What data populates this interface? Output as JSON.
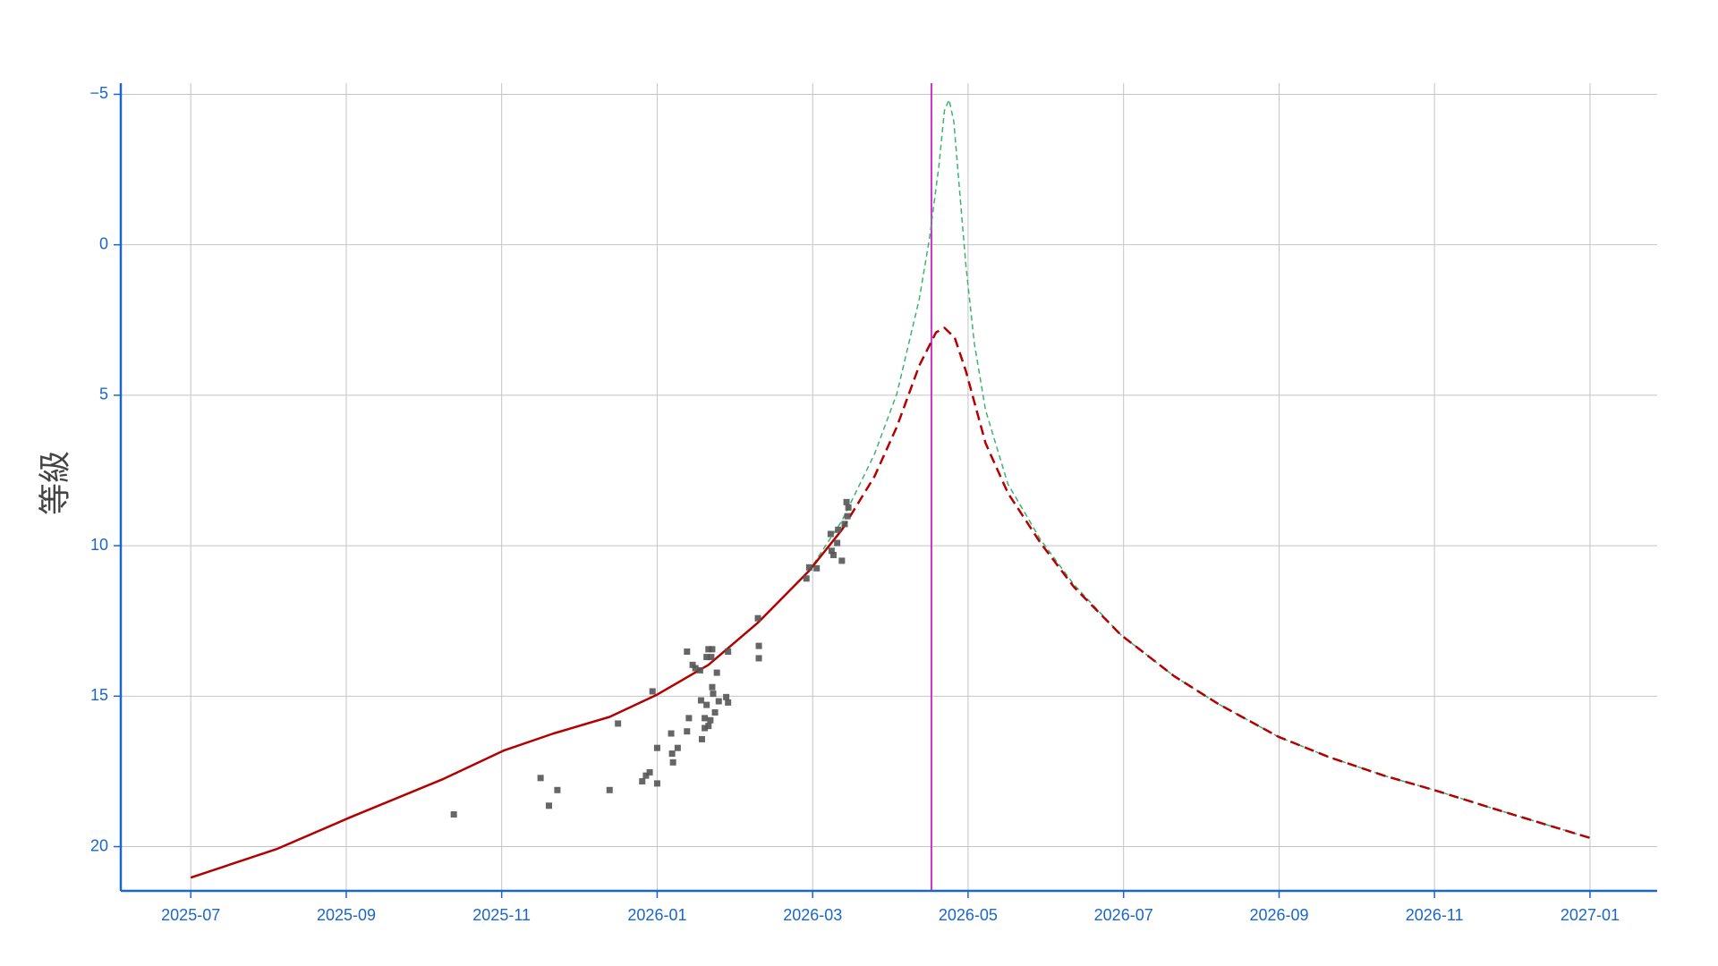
{
  "chart_data": {
    "type": "line",
    "y_label": "等級",
    "xlim": [
      2025.425,
      2027.072
    ],
    "ylim": [
      21.47,
      -5.37
    ],
    "xticks": [
      {
        "value": 2025.5,
        "label": "2025-07"
      },
      {
        "value": 2025.6667,
        "label": "2025-09"
      },
      {
        "value": 2025.8333,
        "label": "2025-11"
      },
      {
        "value": 2026.0,
        "label": "2026-01"
      },
      {
        "value": 2026.1667,
        "label": "2026-03"
      },
      {
        "value": 2026.3333,
        "label": "2026-05"
      },
      {
        "value": 2026.5,
        "label": "2026-07"
      },
      {
        "value": 2026.6667,
        "label": "2026-09"
      },
      {
        "value": 2026.8333,
        "label": "2026-11"
      },
      {
        "value": 2027.0,
        "label": "2027-01"
      }
    ],
    "yticks": [
      {
        "value": -5,
        "label": "−5"
      },
      0,
      5,
      10,
      15,
      20
    ],
    "grid": true,
    "axis_color": "#1a66cc",
    "vlines": [
      {
        "x": 2026.294,
        "color": "#cc33cc"
      }
    ],
    "series": [
      {
        "type": "line",
        "color": "#3cb371",
        "dashed": true,
        "width": 1.5,
        "x": [
          2025.5,
          2025.593,
          2025.67,
          2025.771,
          2025.836,
          2025.889,
          2025.949,
          2026.0,
          2026.055,
          2026.108,
          2026.163,
          2026.198,
          2026.233,
          2026.257,
          2026.281,
          2026.292,
          2026.302,
          2026.308,
          2026.313,
          2026.318,
          2026.324,
          2026.331,
          2026.34,
          2026.352,
          2026.376,
          2026.411,
          2026.447,
          2026.497,
          2026.554,
          2026.601,
          2026.666,
          2026.72,
          2026.779,
          2026.833,
          2026.898,
          2027.0
        ],
        "values": [
          21.03,
          20.07,
          19.04,
          17.75,
          16.8,
          16.24,
          15.69,
          14.95,
          13.96,
          12.56,
          10.83,
          9.17,
          6.96,
          4.94,
          1.8,
          -0.22,
          -2.62,
          -4.46,
          -4.82,
          -4.09,
          -1.88,
          0.7,
          3.28,
          5.49,
          7.95,
          9.8,
          11.3,
          12.96,
          14.33,
          15.25,
          16.35,
          17.02,
          17.64,
          18.12,
          18.75,
          19.71
        ]
      },
      {
        "type": "line",
        "color": "#b30000",
        "dashed": false,
        "width": 2.5,
        "x": [
          2025.5,
          2025.593,
          2025.67,
          2025.771,
          2025.836,
          2025.889,
          2025.949,
          2026.0,
          2026.055,
          2026.108,
          2026.163,
          2026.198
        ],
        "values": [
          21.03,
          20.07,
          19.04,
          17.75,
          16.8,
          16.24,
          15.69,
          14.95,
          13.96,
          12.56,
          10.83,
          9.47
        ]
      },
      {
        "type": "line",
        "color": "#b30000",
        "dashed": true,
        "width": 2.5,
        "x": [
          2026.198,
          2026.233,
          2026.257,
          2026.281,
          2026.299,
          2026.308,
          2026.319,
          2026.331,
          2026.352,
          2026.376,
          2026.411,
          2026.447,
          2026.497,
          2026.554,
          2026.601,
          2026.666,
          2026.72,
          2026.779,
          2026.833,
          2026.898,
          2027.0
        ],
        "values": [
          9.47,
          7.7,
          6.04,
          4.01,
          2.91,
          2.76,
          3.09,
          4.2,
          6.59,
          8.25,
          9.91,
          11.38,
          12.96,
          14.33,
          15.25,
          16.35,
          17.02,
          17.64,
          18.12,
          18.75,
          19.71
        ]
      },
      {
        "type": "scatter",
        "color": "#555555",
        "x": [
          2025.782,
          2025.875,
          2025.884,
          2025.893,
          2025.949,
          2025.958,
          2025.984,
          2025.988,
          2025.992,
          2026.0,
          2026.0,
          2025.995,
          2026.015,
          2026.016,
          2026.017,
          2026.022,
          2026.032,
          2026.032,
          2026.034,
          2026.038,
          2026.041,
          2026.046,
          2026.047,
          2026.048,
          2026.051,
          2026.051,
          2026.053,
          2026.053,
          2026.055,
          2026.055,
          2026.057,
          2026.058,
          2026.059,
          2026.059,
          2026.06,
          2026.062,
          2026.064,
          2026.066,
          2026.074,
          2026.076,
          2026.076,
          2026.108,
          2026.109,
          2026.109,
          2026.16,
          2026.163,
          2026.171,
          2026.186,
          2026.187,
          2026.189,
          2026.193,
          2026.194,
          2026.198,
          2026.201,
          2026.203,
          2026.204,
          2026.205
        ],
        "values": [
          18.93,
          17.72,
          18.64,
          18.12,
          18.12,
          15.91,
          17.83,
          17.64,
          17.53,
          16.72,
          17.9,
          14.84,
          16.24,
          16.91,
          17.2,
          16.72,
          13.52,
          16.17,
          15.73,
          13.96,
          14.07,
          14.14,
          15.14,
          16.43,
          15.73,
          16.06,
          13.7,
          15.29,
          13.44,
          15.99,
          15.8,
          13.7,
          13.44,
          14.7,
          14.92,
          15.54,
          14.22,
          15.17,
          15.03,
          13.52,
          15.21,
          12.41,
          13.33,
          13.74,
          11.09,
          10.72,
          10.75,
          9.61,
          10.17,
          10.31,
          9.91,
          9.47,
          10.5,
          9.28,
          8.55,
          9.02,
          8.73
        ]
      }
    ]
  }
}
